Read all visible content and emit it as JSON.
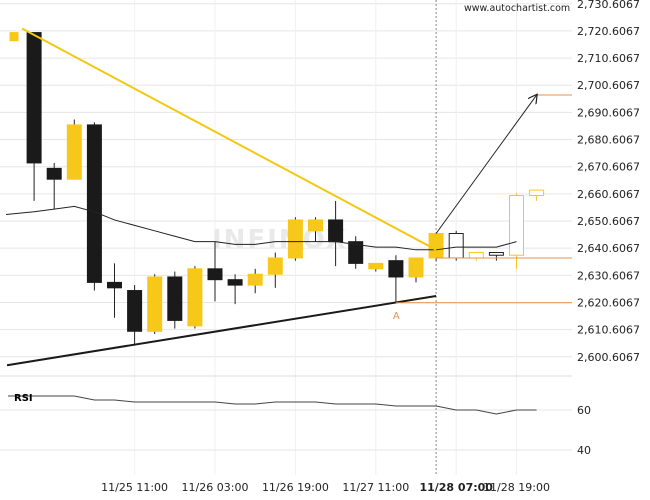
{
  "site_label": "www.autochartist.com",
  "watermark": "INFINOX",
  "chart_data": {
    "type": "candlestick",
    "title": "",
    "ylim": [
      2595,
      2732
    ],
    "y_ticks": [
      "2,730.6067",
      "2,720.6067",
      "2,710.6067",
      "2,700.6067",
      "2,690.6067",
      "2,680.6067",
      "2,670.6067",
      "2,660.6067",
      "2,650.6067",
      "2,640.6067",
      "2,630.6067",
      "2,620.6067",
      "2,610.6067",
      "2,600.6067"
    ],
    "y_tick_values": [
      2730.6067,
      2720.6067,
      2710.6067,
      2700.6067,
      2690.6067,
      2680.6067,
      2670.6067,
      2660.6067,
      2650.6067,
      2640.6067,
      2630.6067,
      2620.6067,
      2610.6067,
      2600.6067
    ],
    "x_tick_labels": [
      {
        "label": "11/25 11:00",
        "bar": 6
      },
      {
        "label": "11/26 03:00",
        "bar": 10
      },
      {
        "label": "11/26 19:00",
        "bar": 14
      },
      {
        "label": "11/27 11:00",
        "bar": 18
      },
      {
        "label": "11/28 07:00",
        "bar": 22,
        "bold": true
      },
      {
        "label": "11/28 19:00",
        "bar": 25
      }
    ],
    "candles": [
      {
        "o": 2720,
        "h": 2720,
        "l": 2717,
        "c": 2717,
        "color": "yellow"
      },
      {
        "o": 2720,
        "h": 2720,
        "l": 2658,
        "c": 2672,
        "color": "black"
      },
      {
        "o": 2670,
        "h": 2672,
        "l": 2655,
        "c": 2666,
        "color": "black"
      },
      {
        "o": 2666,
        "h": 2688,
        "l": 2666,
        "c": 2686,
        "color": "yellow"
      },
      {
        "o": 2686,
        "h": 2687,
        "l": 2625,
        "c": 2628,
        "color": "black"
      },
      {
        "o": 2628,
        "h": 2635,
        "l": 2615,
        "c": 2626,
        "color": "black"
      },
      {
        "o": 2625,
        "h": 2627,
        "l": 2605,
        "c": 2610,
        "color": "black"
      },
      {
        "o": 2610,
        "h": 2631,
        "l": 2609,
        "c": 2630,
        "color": "yellow"
      },
      {
        "o": 2630,
        "h": 2632,
        "l": 2611,
        "c": 2614,
        "color": "black"
      },
      {
        "o": 2612,
        "h": 2634,
        "l": 2611,
        "c": 2633,
        "color": "yellow"
      },
      {
        "o": 2633,
        "h": 2643,
        "l": 2621,
        "c": 2629,
        "color": "black"
      },
      {
        "o": 2629,
        "h": 2631,
        "l": 2620,
        "c": 2627,
        "color": "black"
      },
      {
        "o": 2627,
        "h": 2633,
        "l": 2624,
        "c": 2631,
        "color": "yellow"
      },
      {
        "o": 2631,
        "h": 2639,
        "l": 2626,
        "c": 2637,
        "color": "yellow"
      },
      {
        "o": 2637,
        "h": 2652,
        "l": 2636,
        "c": 2651,
        "color": "yellow"
      },
      {
        "o": 2647,
        "h": 2652,
        "l": 2643,
        "c": 2651,
        "color": "yellow"
      },
      {
        "o": 2651,
        "h": 2658,
        "l": 2634,
        "c": 2643,
        "color": "black"
      },
      {
        "o": 2643,
        "h": 2645,
        "l": 2633,
        "c": 2635,
        "color": "black"
      },
      {
        "o": 2633,
        "h": 2635,
        "l": 2632,
        "c": 2635,
        "color": "yellow"
      },
      {
        "o": 2636,
        "h": 2638,
        "l": 2621,
        "c": 2630,
        "color": "black"
      },
      {
        "o": 2630,
        "h": 2636,
        "l": 2628,
        "c": 2637,
        "color": "yellow"
      },
      {
        "o": 2637,
        "h": 2646,
        "l": 2636,
        "c": 2646,
        "color": "yellow"
      },
      {
        "o": 2646,
        "h": 2647,
        "l": 2636,
        "c": 2637,
        "color": "white"
      },
      {
        "o": 2637,
        "h": 2639,
        "l": 2636,
        "c": 2639,
        "color": "paleyellow"
      },
      {
        "o": 2638,
        "h": 2639,
        "l": 2636,
        "c": 2639,
        "color": "white"
      },
      {
        "o": 2638,
        "h": 2661,
        "l": 2633,
        "c": 2660,
        "color": "paleyellow"
      },
      {
        "o": 2660,
        "h": 2662,
        "l": 2658,
        "c": 2662,
        "color": "paleyellow"
      }
    ],
    "moving_average": [
      2653,
      2654,
      2655,
      2656,
      2654,
      2651,
      2649,
      2647,
      2645,
      2643,
      2643,
      2642,
      2642,
      2643,
      2643,
      2643,
      2643,
      2642,
      2641,
      2641,
      2640,
      2640,
      2641,
      2641,
      2641,
      2643
    ],
    "triangle_upper": {
      "x1": 0.4,
      "y1": 2721.5,
      "x2": 21,
      "y2": 2640
    },
    "triangle_lower": {
      "x1": 0,
      "y1": 2597.5,
      "x2": 21,
      "y2": 2623
    },
    "forecast_arrow": {
      "x1": 21,
      "y1": 2646,
      "x2": 26,
      "y2": 2697
    },
    "target_levels": [
      {
        "value": 2697,
        "from_bar": 26
      },
      {
        "value": 2637,
        "from_bar": 21
      },
      {
        "value": 2620.5,
        "from_bar": 19
      }
    ],
    "point_label": {
      "text": "A",
      "bar": 19,
      "value": 2616
    },
    "current_bar_index": 21,
    "rsi": {
      "label": "RSI",
      "ylim": [
        30,
        75
      ],
      "ticks": [
        "60",
        "40"
      ],
      "tick_values": [
        60,
        40
      ],
      "values": [
        67,
        67,
        67,
        67,
        65,
        65,
        64,
        64,
        64,
        64,
        64,
        63,
        63,
        64,
        64,
        64,
        63,
        63,
        63,
        62,
        62,
        62,
        60,
        60,
        58,
        60,
        60
      ]
    }
  },
  "colors": {
    "bull": "#f7c71a",
    "bull_light": "#fbe78a",
    "bear": "#1a1a1a",
    "trend_upper": "#f2c811",
    "trend_lower": "#1a1a1a",
    "target_line": "#e8914a",
    "ma": "#222222",
    "grid": "#e6e6e6",
    "rsi_line": "#444444"
  }
}
